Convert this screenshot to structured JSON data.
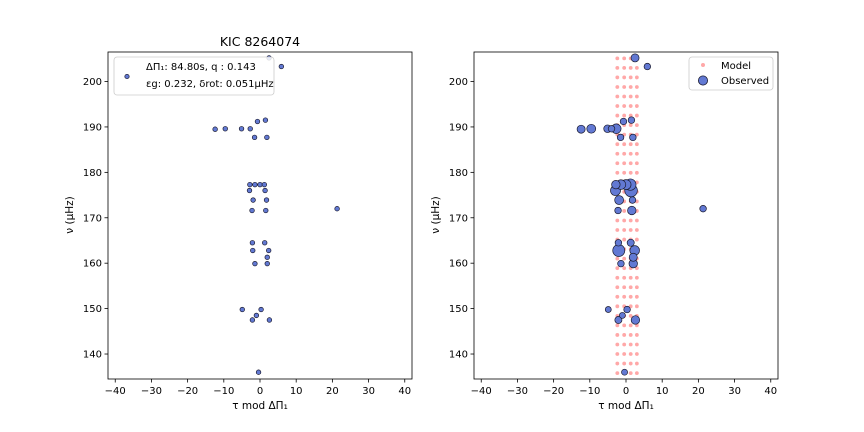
{
  "colors": {
    "observed_fill": "#6279d3",
    "observed_edge": "#1a1a2e",
    "model_fill": "#ffa8a8"
  },
  "chart_data": [
    {
      "type": "scatter",
      "title": "KIC 8264074",
      "xlabel": "τ mod ΔΠ₁",
      "ylabel": "ν (μHz)",
      "xlim": [
        -42,
        42
      ],
      "ylim": [
        134.5,
        206.5
      ],
      "xticks": [
        -40,
        -30,
        -20,
        -10,
        0,
        10,
        20,
        30,
        40
      ],
      "yticks": [
        140,
        150,
        160,
        170,
        180,
        190,
        200
      ],
      "grid": false,
      "legend": {
        "placement": "top-left",
        "line1": "ΔΠ₁: 84.80s, q :  0.143",
        "line2": "εg: 0.232, δrot: 0.051μHz"
      },
      "series": [
        {
          "points": [
            [
              5.9,
              203.3
            ],
            [
              2.5,
              205.2
            ],
            [
              -12.4,
              189.5
            ],
            [
              -9.6,
              189.6
            ],
            [
              -5.1,
              189.6
            ],
            [
              -2.7,
              189.6
            ],
            [
              -0.7,
              191.2
            ],
            [
              1.5,
              191.5
            ],
            [
              -1.5,
              187.7
            ],
            [
              1.9,
              187.7
            ],
            [
              -2.8,
              177.3
            ],
            [
              -1.4,
              177.3
            ],
            [
              0.0,
              177.3
            ],
            [
              1.2,
              177.3
            ],
            [
              -2.9,
              176.0
            ],
            [
              1.4,
              176.0
            ],
            [
              -1.9,
              173.9
            ],
            [
              1.8,
              173.9
            ],
            [
              -2.2,
              171.6
            ],
            [
              1.6,
              171.6
            ],
            [
              21.3,
              172.0
            ],
            [
              -2.1,
              164.5
            ],
            [
              1.3,
              164.5
            ],
            [
              -2.0,
              162.8
            ],
            [
              2.4,
              162.8
            ],
            [
              2.0,
              161.3
            ],
            [
              -1.4,
              159.9
            ],
            [
              2.0,
              159.9
            ],
            [
              -4.9,
              149.8
            ],
            [
              0.3,
              149.8
            ],
            [
              -1.0,
              148.5
            ],
            [
              -2.1,
              147.5
            ],
            [
              2.6,
              147.5
            ],
            [
              -0.4,
              136.0
            ]
          ]
        }
      ]
    },
    {
      "type": "scatter",
      "title": "",
      "xlabel": "τ mod ΔΠ₁",
      "ylabel": "ν (μHz)",
      "xlim": [
        -42,
        42
      ],
      "ylim": [
        134.5,
        206.5
      ],
      "xticks": [
        -40,
        -30,
        -20,
        -10,
        0,
        10,
        20,
        30,
        40
      ],
      "yticks": [
        140,
        150,
        160,
        170,
        180,
        190,
        200
      ],
      "grid": false,
      "legend": {
        "placement": "top-right",
        "model_label": "Model",
        "observed_label": "Observed"
      },
      "model_columns_x": [
        -2.4,
        -0.5,
        1.3,
        3.0
      ],
      "model_band": [
        135.8,
        205.2
      ],
      "model_step": 2.1,
      "series": [
        {
          "name": "Model",
          "points": "generated from model_columns_x, model_band and model_step"
        },
        {
          "name": "Observed",
          "points": [
            [
              5.9,
              203.3,
              3
            ],
            [
              2.5,
              205.2,
              4.5
            ],
            [
              -12.4,
              189.5,
              4.5
            ],
            [
              -9.6,
              189.6,
              5.5
            ],
            [
              -5.1,
              189.6,
              4
            ],
            [
              -4.0,
              189.6,
              3
            ],
            [
              -2.7,
              189.6,
              6.5
            ],
            [
              -0.7,
              191.2,
              3
            ],
            [
              1.5,
              191.5,
              3
            ],
            [
              -1.5,
              187.7,
              3
            ],
            [
              1.9,
              187.7,
              3
            ],
            [
              -2.8,
              177.3,
              5
            ],
            [
              -1.4,
              177.3,
              6.5
            ],
            [
              0.0,
              177.3,
              7
            ],
            [
              1.2,
              177.3,
              9
            ],
            [
              -2.9,
              176.0,
              7
            ],
            [
              1.4,
              176.0,
              11
            ],
            [
              -1.9,
              173.9,
              5.5
            ],
            [
              1.8,
              173.9,
              3
            ],
            [
              -2.2,
              171.6,
              3
            ],
            [
              1.6,
              171.6,
              5
            ],
            [
              21.3,
              172.0,
              3
            ],
            [
              -2.1,
              164.5,
              3
            ],
            [
              1.3,
              164.5,
              3.5
            ],
            [
              -2.0,
              162.8,
              10
            ],
            [
              2.4,
              162.8,
              6.5
            ],
            [
              2.0,
              161.3,
              4.5
            ],
            [
              -1.4,
              159.9,
              3
            ],
            [
              2.0,
              159.9,
              5
            ],
            [
              -4.9,
              149.8,
              2.5
            ],
            [
              0.3,
              149.8,
              3
            ],
            [
              -1.0,
              148.5,
              2.5
            ],
            [
              -2.1,
              147.5,
              3.5
            ],
            [
              2.6,
              147.5,
              5
            ],
            [
              -0.4,
              136.0,
              2.5
            ]
          ]
        }
      ]
    }
  ]
}
